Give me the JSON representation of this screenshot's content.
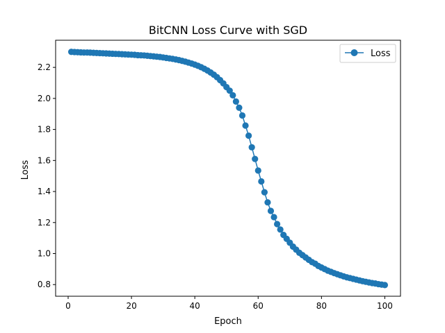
{
  "chart_data": {
    "type": "line",
    "title": "BitCNN Loss Curve with SGD",
    "xlabel": "Epoch",
    "ylabel": "Loss",
    "xlim": [
      -3.95,
      104.95
    ],
    "ylim": [
      0.725,
      2.375
    ],
    "x_ticks": [
      0,
      20,
      40,
      60,
      80,
      100
    ],
    "y_ticks": [
      0.8,
      1.0,
      1.2,
      1.4,
      1.6,
      1.8,
      2.0,
      2.2
    ],
    "x_tick_labels": [
      "0",
      "20",
      "40",
      "60",
      "80",
      "100"
    ],
    "y_tick_labels": [
      "0.8",
      "1.0",
      "1.2",
      "1.4",
      "1.6",
      "1.8",
      "2.0",
      "2.2"
    ],
    "grid": false,
    "legend": {
      "position": "top-right",
      "entries": [
        "Loss"
      ]
    },
    "colors": {
      "series": "#1f77b4",
      "axes": "#000000",
      "background": "#ffffff"
    },
    "series": [
      {
        "name": "Loss",
        "marker": "circle",
        "x": [
          1,
          2,
          3,
          4,
          5,
          6,
          7,
          8,
          9,
          10,
          11,
          12,
          13,
          14,
          15,
          16,
          17,
          18,
          19,
          20,
          21,
          22,
          23,
          24,
          25,
          26,
          27,
          28,
          29,
          30,
          31,
          32,
          33,
          34,
          35,
          36,
          37,
          38,
          39,
          40,
          41,
          42,
          43,
          44,
          45,
          46,
          47,
          48,
          49,
          50,
          51,
          52,
          53,
          54,
          55,
          56,
          57,
          58,
          59,
          60,
          61,
          62,
          63,
          64,
          65,
          66,
          67,
          68,
          69,
          70,
          71,
          72,
          73,
          74,
          75,
          76,
          77,
          78,
          79,
          80,
          81,
          82,
          83,
          84,
          85,
          86,
          87,
          88,
          89,
          90,
          91,
          92,
          93,
          94,
          95,
          96,
          97,
          98,
          99,
          100
        ],
        "values": [
          2.3,
          2.299,
          2.298,
          2.297,
          2.296,
          2.296,
          2.295,
          2.294,
          2.293,
          2.292,
          2.291,
          2.29,
          2.289,
          2.288,
          2.287,
          2.286,
          2.285,
          2.284,
          2.283,
          2.282,
          2.281,
          2.279,
          2.278,
          2.277,
          2.275,
          2.273,
          2.271,
          2.269,
          2.267,
          2.264,
          2.261,
          2.258,
          2.255,
          2.251,
          2.247,
          2.242,
          2.237,
          2.231,
          2.225,
          2.218,
          2.21,
          2.201,
          2.191,
          2.18,
          2.167,
          2.153,
          2.137,
          2.118,
          2.097,
          2.073,
          2.05,
          2.02,
          1.98,
          1.94,
          1.89,
          1.825,
          1.76,
          1.685,
          1.61,
          1.535,
          1.465,
          1.395,
          1.33,
          1.275,
          1.235,
          1.19,
          1.155,
          1.12,
          1.095,
          1.07,
          1.045,
          1.025,
          1.005,
          0.99,
          0.975,
          0.96,
          0.945,
          0.935,
          0.92,
          0.91,
          0.9,
          0.89,
          0.882,
          0.874,
          0.867,
          0.86,
          0.853,
          0.847,
          0.842,
          0.837,
          0.832,
          0.827,
          0.822,
          0.818,
          0.814,
          0.81,
          0.807,
          0.803,
          0.8,
          0.797
        ]
      }
    ]
  }
}
